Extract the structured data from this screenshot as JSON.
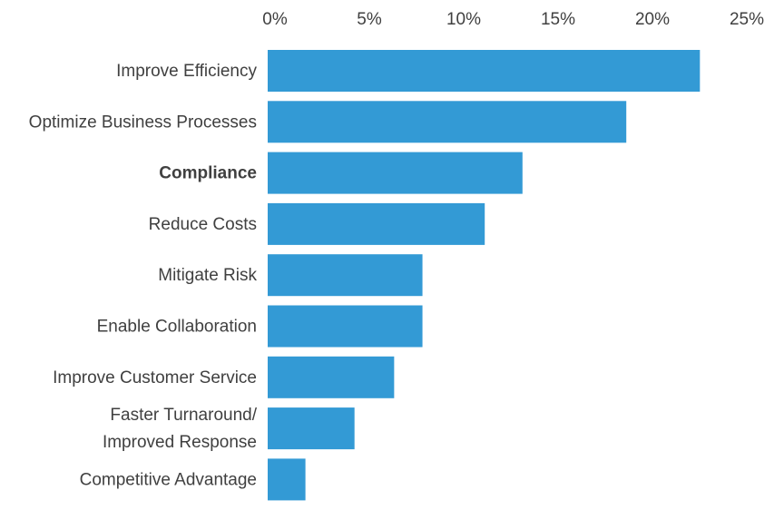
{
  "chart_data": {
    "type": "bar",
    "orientation": "horizontal",
    "categories": [
      "Improve Efficiency",
      "Optimize Business Processes",
      "Compliance",
      "Reduce Costs",
      "Mitigate Risk",
      "Enable Collaboration",
      "Improve Customer Service",
      "Faster Turnaround/ Improved Response",
      "Competitive Advantage"
    ],
    "category_lines": [
      [
        "Improve Efficiency"
      ],
      [
        "Optimize Business Processes"
      ],
      [
        "Compliance"
      ],
      [
        "Reduce Costs"
      ],
      [
        "Mitigate Risk"
      ],
      [
        "Enable Collaboration"
      ],
      [
        "Improve Customer Service"
      ],
      [
        "Faster Turnaround/",
        "Improved Response"
      ],
      [
        "Competitive Advantage"
      ]
    ],
    "values": [
      22.9,
      19.0,
      13.5,
      11.5,
      8.2,
      8.2,
      6.7,
      4.6,
      2.0
    ],
    "unit": "%",
    "xlim": [
      0,
      25
    ],
    "x_ticks": [
      0,
      5,
      10,
      15,
      20,
      25
    ],
    "x_tick_labels": [
      "0%",
      "5%",
      "10%",
      "15%",
      "20%",
      "25%"
    ],
    "x_axis_position": "top",
    "title": "",
    "xlabel": "",
    "ylabel": "",
    "grid": false,
    "legend": "none",
    "bar_color": "#339ad5",
    "text_color": "#404040",
    "emphasized_category": "Compliance"
  }
}
